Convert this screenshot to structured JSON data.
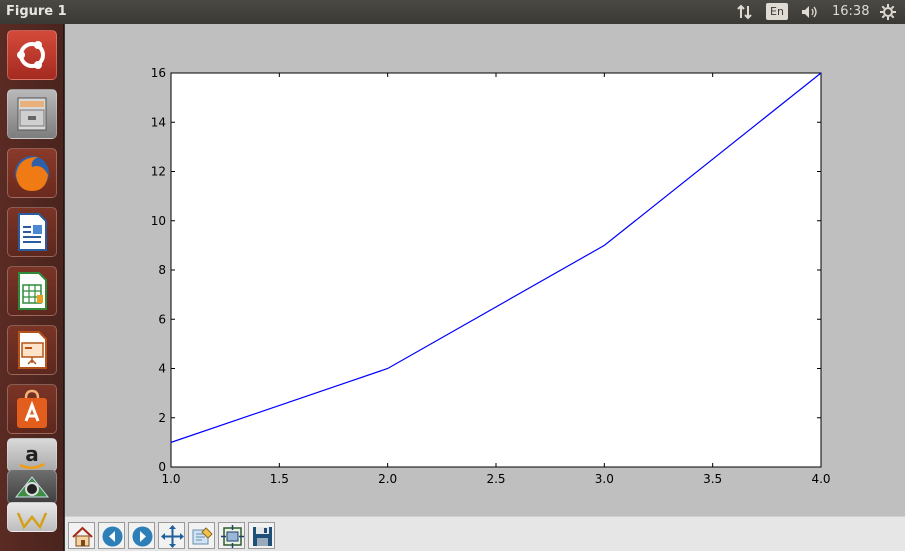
{
  "window": {
    "title": "Figure 1"
  },
  "topbar": {
    "language": "En",
    "clock": "16:38",
    "icons": [
      "network-arrows-icon",
      "keyboard-language-icon",
      "sound-icon",
      "session-gear-icon"
    ]
  },
  "launcher": {
    "items": [
      {
        "name": "ubuntu-dash",
        "icon": "ubuntu-logo-icon",
        "color": "#c0392b"
      },
      {
        "name": "files",
        "icon": "file-cabinet-icon",
        "color": "#8a8a8a"
      },
      {
        "name": "firefox",
        "icon": "firefox-icon",
        "color": "#e66000"
      },
      {
        "name": "libreoffice-writer",
        "icon": "writer-document-icon",
        "color": "#2a5b9c"
      },
      {
        "name": "libreoffice-calc",
        "icon": "calc-spreadsheet-icon",
        "color": "#2e8b3a"
      },
      {
        "name": "libreoffice-impress",
        "icon": "impress-presentation-icon",
        "color": "#b5531a"
      },
      {
        "name": "software-center",
        "icon": "software-center-bag-icon",
        "color": "#e35e1c"
      },
      {
        "name": "amazon",
        "icon": "amazon-icon",
        "color": "#dddddd"
      },
      {
        "name": "system-settings",
        "icon": "settings-icon",
        "color": "#5a5a5a"
      }
    ]
  },
  "toolbar": {
    "buttons": [
      "home",
      "back",
      "forward",
      "pan",
      "zoom",
      "subplots",
      "save"
    ]
  },
  "chart_data": {
    "type": "line",
    "x": [
      1.0,
      2.0,
      3.0,
      4.0
    ],
    "series": [
      {
        "values": [
          1,
          4,
          9,
          16
        ],
        "color": "#0000ff"
      }
    ],
    "xlim": [
      1.0,
      4.0
    ],
    "ylim": [
      0,
      16
    ],
    "xticks": [
      "1.0",
      "1.5",
      "2.0",
      "2.5",
      "3.0",
      "3.5",
      "4.0"
    ],
    "yticks": [
      "0",
      "2",
      "4",
      "6",
      "8",
      "10",
      "12",
      "14",
      "16"
    ],
    "title": "",
    "xlabel": "",
    "ylabel": "",
    "grid": false,
    "legend": "none"
  }
}
